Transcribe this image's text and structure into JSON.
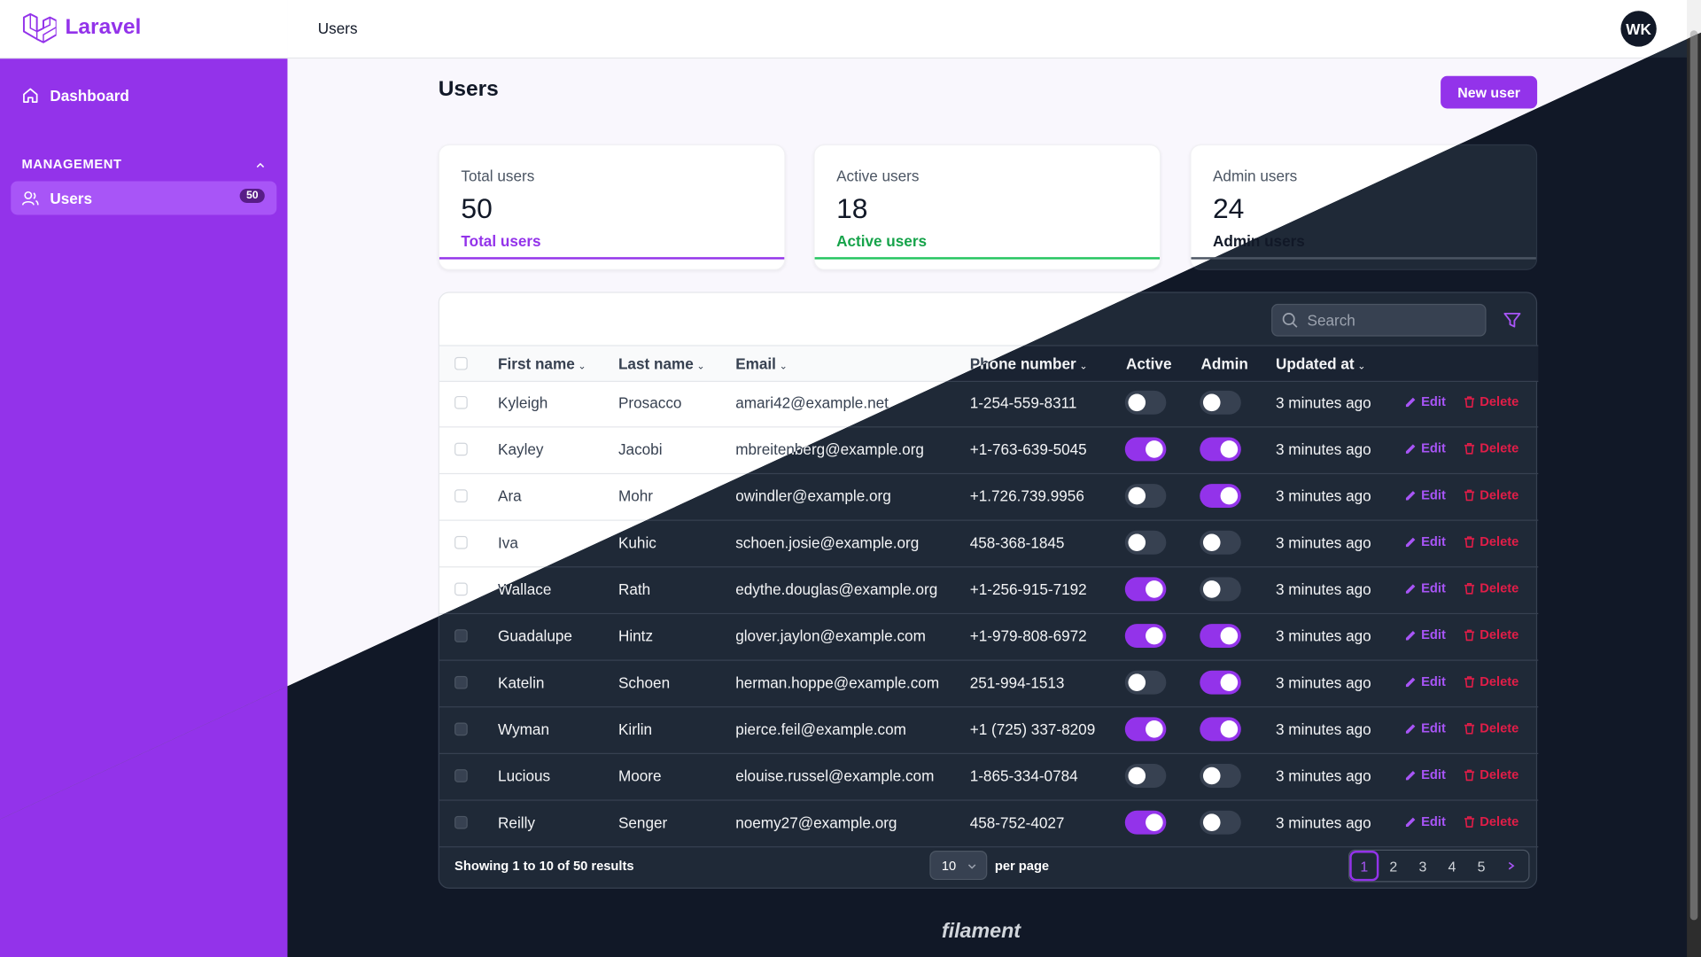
{
  "app": {
    "brand": "Laravel",
    "page_title": "Users",
    "avatar_initials": "WK"
  },
  "sidebar": {
    "dashboard_label": "Dashboard",
    "section_label": "MANAGEMENT",
    "users_label": "Users",
    "users_badge": "50"
  },
  "header": {
    "title": "Users",
    "new_user_label": "New user"
  },
  "stats": [
    {
      "label": "Total users",
      "value": "50",
      "description": "Total users",
      "color": "#9333ea"
    },
    {
      "label": "Active users",
      "value": "18",
      "description": "Active users",
      "color": "#16a34a"
    },
    {
      "label": "Admin users",
      "value": "24",
      "description": "Admin users",
      "color": "#374151"
    }
  ],
  "table": {
    "search_placeholder": "Search",
    "columns": [
      "First name",
      "Last name",
      "Email",
      "Phone number",
      "Active",
      "Admin",
      "Updated at"
    ],
    "edit_label": "Edit",
    "delete_label": "Delete",
    "rows": [
      {
        "first": "Kyleigh",
        "last": "Prosacco",
        "email": "amari42@example.net",
        "phone": "1-254-559-8311",
        "active": false,
        "admin": false,
        "updated": "3 minutes ago"
      },
      {
        "first": "Kayley",
        "last": "Jacobi",
        "email": "mbreitenberg@example.org",
        "phone": "+1-763-639-5045",
        "active": true,
        "admin": true,
        "updated": "3 minutes ago"
      },
      {
        "first": "Ara",
        "last": "Mohr",
        "email": "owindler@example.org",
        "phone": "+1.726.739.9956",
        "active": false,
        "admin": true,
        "updated": "3 minutes ago"
      },
      {
        "first": "Iva",
        "last": "Kuhic",
        "email": "schoen.josie@example.org",
        "phone": "458-368-1845",
        "active": false,
        "admin": false,
        "updated": "3 minutes ago"
      },
      {
        "first": "Wallace",
        "last": "Rath",
        "email": "edythe.douglas@example.org",
        "phone": "+1-256-915-7192",
        "active": true,
        "admin": false,
        "updated": "3 minutes ago"
      },
      {
        "first": "Guadalupe",
        "last": "Hintz",
        "email": "glover.jaylon@example.com",
        "phone": "+1-979-808-6972",
        "active": true,
        "admin": true,
        "updated": "3 minutes ago"
      },
      {
        "first": "Katelin",
        "last": "Schoen",
        "email": "herman.hoppe@example.com",
        "phone": "251-994-1513",
        "active": false,
        "admin": true,
        "updated": "3 minutes ago"
      },
      {
        "first": "Wyman",
        "last": "Kirlin",
        "email": "pierce.feil@example.com",
        "phone": "+1 (725) 337-8209",
        "active": true,
        "admin": true,
        "updated": "3 minutes ago"
      },
      {
        "first": "Lucious",
        "last": "Moore",
        "email": "elouise.russel@example.com",
        "phone": "1-865-334-0784",
        "active": false,
        "admin": false,
        "updated": "3 minutes ago"
      },
      {
        "first": "Reilly",
        "last": "Senger",
        "email": "noemy27@example.org",
        "phone": "458-752-4027",
        "active": true,
        "admin": false,
        "updated": "3 minutes ago"
      }
    ],
    "footer_text": "Showing 1 to 10 of 50 results",
    "per_page_value": "10",
    "per_page_label": "per page",
    "pages": [
      "1",
      "2",
      "3",
      "4",
      "5"
    ],
    "current_page": "1"
  },
  "footer": {
    "brand": "filament"
  },
  "colors": {
    "accent": "#9333ea",
    "danger": "#e11d48",
    "success": "#16a34a"
  }
}
